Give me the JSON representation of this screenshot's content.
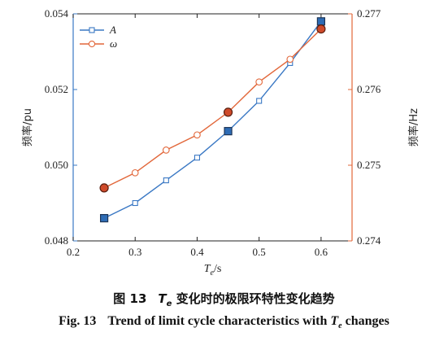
{
  "chart_data": {
    "type": "line",
    "x": [
      0.25,
      0.3,
      0.35,
      0.4,
      0.45,
      0.5,
      0.55,
      0.6
    ],
    "xlabel": {
      "symbol": "T",
      "subscript": "e",
      "unit": "/s"
    },
    "xlim": [
      0.2,
      0.65
    ],
    "xticks": [
      "0.2",
      "0.3",
      "0.4",
      "0.5",
      "0.6"
    ],
    "grid": false,
    "legend_position": "top-left",
    "left_axis": {
      "label": "频率/pu",
      "ylim": [
        0.048,
        0.054
      ],
      "ticks": [
        "0.048",
        "0.050",
        "0.052",
        "0.054"
      ],
      "color": "#3a78c4"
    },
    "right_axis": {
      "label": "频率/Hz",
      "ylim": [
        0.274,
        0.277
      ],
      "ticks": [
        "0.274",
        "0.275",
        "0.276",
        "0.277"
      ],
      "color": "#e2673a"
    },
    "series": [
      {
        "name": "A",
        "axis": "left",
        "color": "#3a78c4",
        "marker": "square",
        "values": [
          0.0486,
          0.049,
          0.0496,
          0.0502,
          0.0509,
          0.0517,
          0.0527,
          0.0538
        ],
        "highlighted_x": [
          0.25,
          0.45,
          0.6
        ]
      },
      {
        "name": "ω",
        "axis": "right",
        "color": "#e2673a",
        "marker": "circle",
        "values": [
          0.2747,
          0.2749,
          0.2752,
          0.2754,
          0.2757,
          0.2761,
          0.2764,
          0.2768
        ],
        "highlighted_x": [
          0.25,
          0.45,
          0.6
        ]
      }
    ]
  },
  "caption": {
    "cn_label": "图 13",
    "cn_symbol": "T",
    "cn_subscript": "e",
    "cn_text": "变化时的极限环特性变化趋势",
    "en_label": "Fig. 13",
    "en_text": "Trend of limit cycle characteristics with",
    "en_symbol": "T",
    "en_subscript": "e",
    "en_text_end": "changes"
  }
}
